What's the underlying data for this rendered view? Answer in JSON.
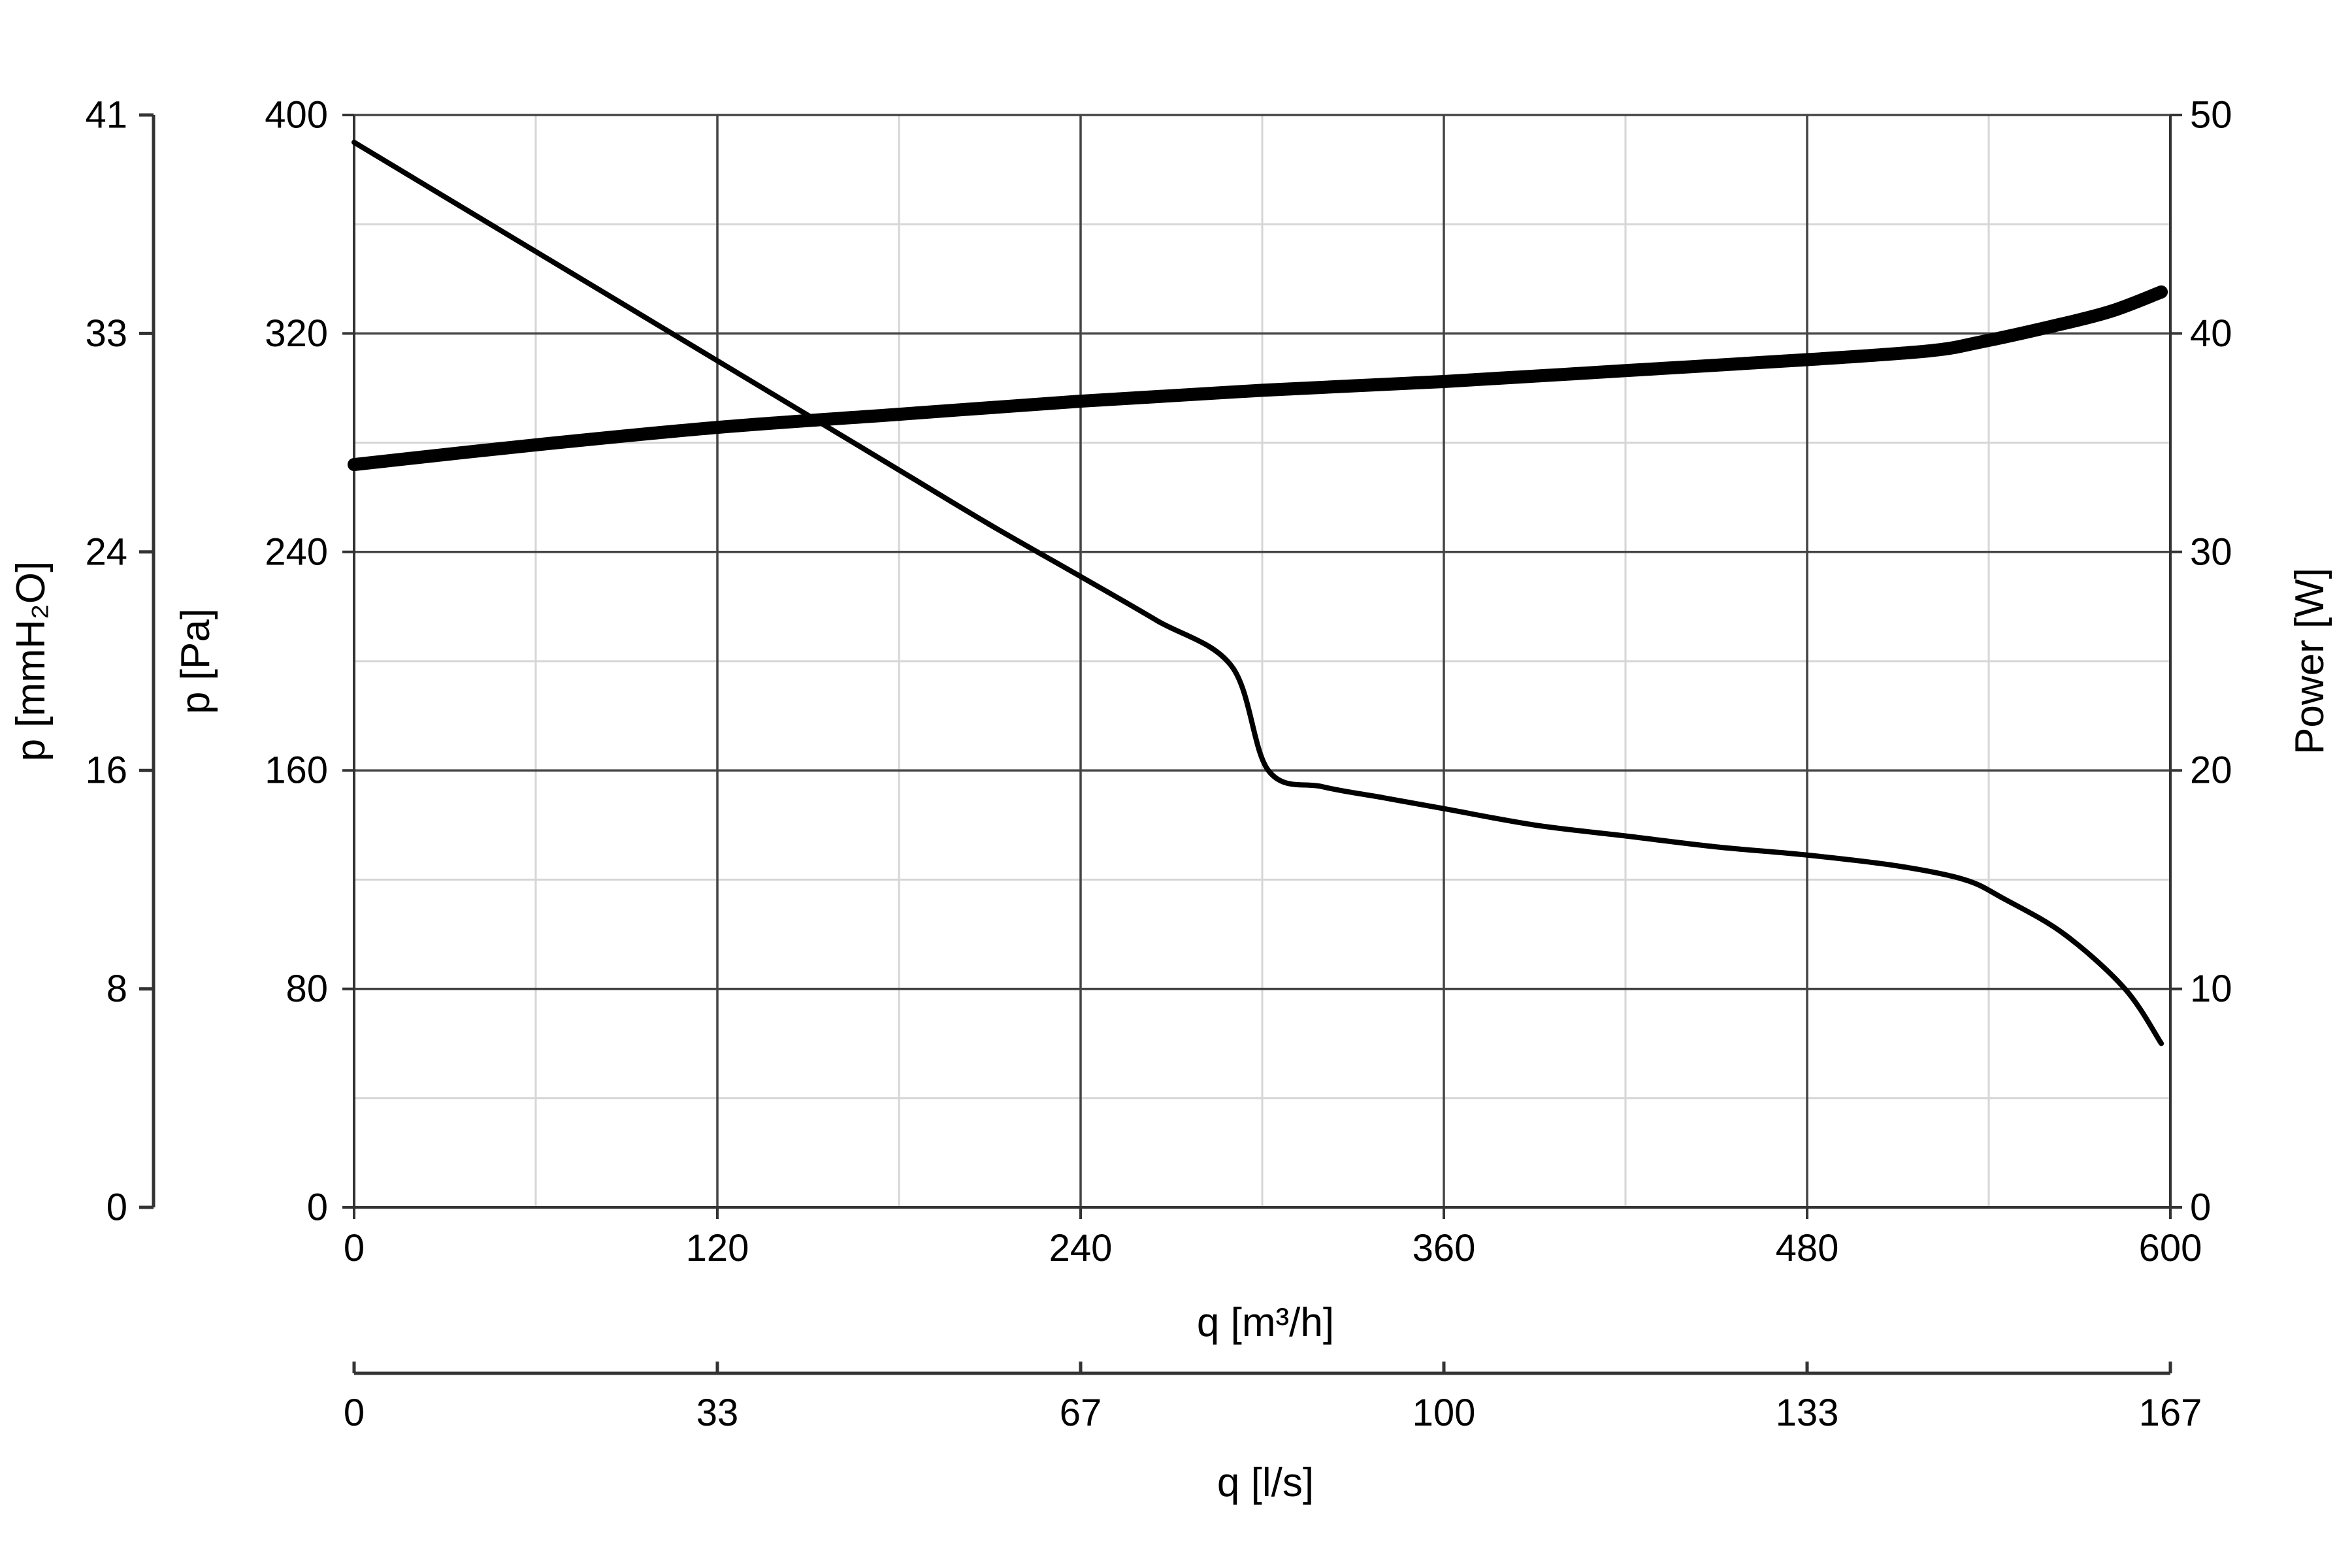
{
  "chart_data": {
    "type": "line",
    "title": "",
    "xlabel": "q [m³/h]",
    "xlim": [
      0,
      600
    ],
    "xticks": [
      0,
      120,
      240,
      360,
      480,
      600
    ],
    "x2label": "q [l/s]",
    "x2ticks": [
      "0",
      "33",
      "67",
      "100",
      "133",
      "167"
    ],
    "ylabel": "p [Pa]",
    "ylim": [
      0,
      400
    ],
    "yticks": [
      0,
      80,
      160,
      240,
      320,
      400
    ],
    "y2label": "p [mmH₂O]",
    "y2ticks": [
      "0",
      "8",
      "16",
      "24",
      "33",
      "41"
    ],
    "y3label": "Power [W]",
    "y3lim": [
      0,
      50
    ],
    "y3ticks": [
      0,
      10,
      20,
      30,
      40,
      50
    ],
    "grid": true,
    "series": [
      {
        "axis": "pressure",
        "x": [
          0,
          30,
          60,
          90,
          120,
          150,
          180,
          210,
          240,
          265,
          290,
          302,
          320,
          340,
          360,
          390,
          420,
          450,
          480,
          510,
          532,
          545,
          565,
          585,
          597
        ],
        "y": [
          390,
          370,
          350,
          330,
          310,
          290,
          270,
          250,
          231,
          215,
          198,
          160,
          154,
          150,
          146,
          140,
          136,
          132,
          129,
          125,
          120,
          113,
          100,
          80,
          60
        ]
      },
      {
        "axis": "power",
        "x": [
          0,
          60,
          120,
          180,
          240,
          300,
          360,
          420,
          480,
          520,
          537,
          560,
          580,
          597
        ],
        "y": [
          34.0,
          34.9,
          35.7,
          36.3,
          36.9,
          37.4,
          37.8,
          38.3,
          38.8,
          39.2,
          39.6,
          40.3,
          41.0,
          41.9
        ]
      }
    ]
  }
}
